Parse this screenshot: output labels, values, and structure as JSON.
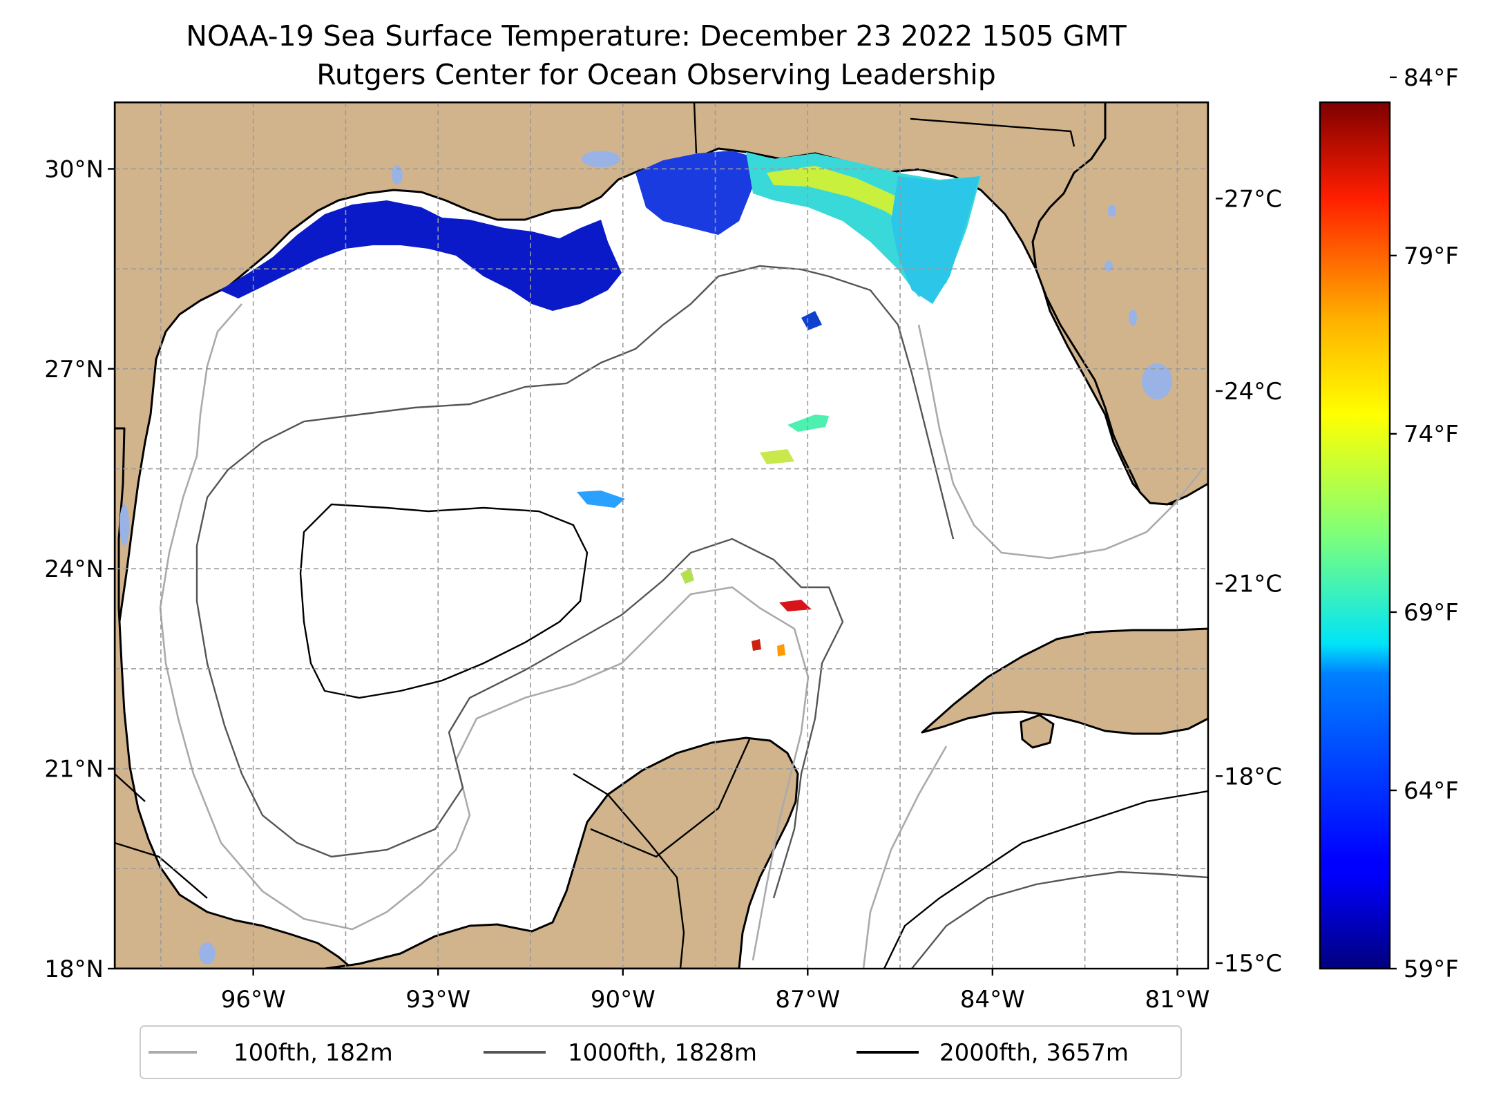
{
  "title": {
    "line1": "NOAA-19 Sea Surface Temperature: December 23 2022 1505 GMT",
    "line2": "Rutgers Center for Ocean Observing Leadership"
  },
  "map": {
    "lat_range": [
      18,
      31
    ],
    "lon_range": [
      -98.25,
      -80.5
    ],
    "gridlines": true,
    "lat_ticks": [
      {
        "value": 30,
        "label": "30°N"
      },
      {
        "value": 27,
        "label": "27°N"
      },
      {
        "value": 24,
        "label": "24°N"
      },
      {
        "value": 21,
        "label": "21°N"
      },
      {
        "value": 18,
        "label": "18°N"
      }
    ],
    "lon_ticks": [
      {
        "value": -96,
        "label": "96°W"
      },
      {
        "value": -93,
        "label": "93°W"
      },
      {
        "value": -90,
        "label": "90°W"
      },
      {
        "value": -87,
        "label": "87°W"
      },
      {
        "value": -84,
        "label": "84°W"
      },
      {
        "value": -81,
        "label": "81°W"
      }
    ],
    "colors": {
      "land": "#d2b48c",
      "lakes": "#99b3e6",
      "ocean": "#ffffff"
    }
  },
  "colorbar": {
    "colormap": "jet",
    "range_celsius": [
      15,
      28.5
    ],
    "celsius_ticks": [
      {
        "value": 27,
        "label": "27°C"
      },
      {
        "value": 24,
        "label": "24°C"
      },
      {
        "value": 21,
        "label": "21°C"
      },
      {
        "value": 18,
        "label": "18°C"
      },
      {
        "value": 15,
        "label": "15°C"
      }
    ],
    "fahrenheit_ticks": [
      {
        "value": 84,
        "label": "84°F"
      },
      {
        "value": 79,
        "label": "79°F"
      },
      {
        "value": 74,
        "label": "74°F"
      },
      {
        "value": 69,
        "label": "69°F"
      },
      {
        "value": 64,
        "label": "64°F"
      },
      {
        "value": 59,
        "label": "59°F"
      }
    ]
  },
  "legend": {
    "placement": "bottom-center",
    "items": [
      {
        "label": "100fth, 182m",
        "color": "#aaaaaa"
      },
      {
        "label": "1000fth, 1828m",
        "color": "#555555"
      },
      {
        "label": "2000fth, 3657m",
        "color": "#000000"
      }
    ]
  }
}
